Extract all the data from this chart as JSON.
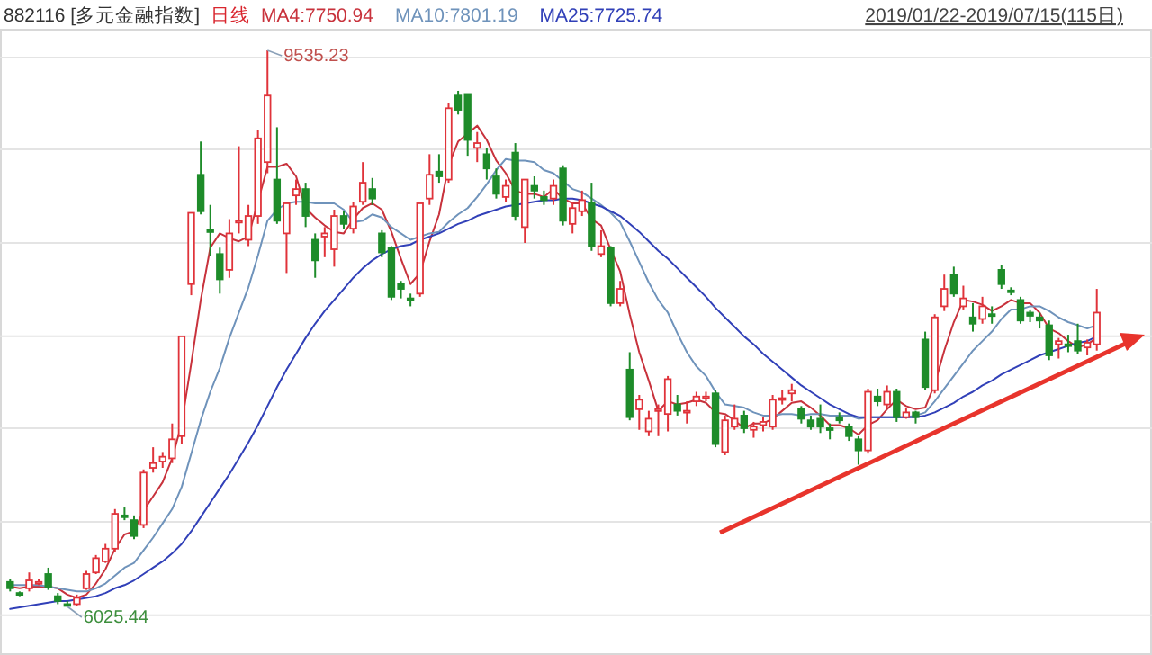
{
  "chart_data": {
    "type": "candlestick",
    "title": "882116 [多元金融指数]",
    "subtitle": "日线",
    "categories": [
      null,
      null,
      null,
      null,
      null,
      null,
      null,
      null,
      null,
      null,
      null,
      null,
      null,
      null,
      null,
      null,
      null,
      null,
      null,
      null,
      null,
      null,
      null,
      null,
      null,
      null,
      null,
      null,
      null,
      null,
      null,
      null,
      null,
      null,
      null,
      null,
      null,
      null,
      null,
      null,
      null,
      null,
      null,
      null,
      null,
      null,
      null,
      null,
      null,
      null,
      null,
      null,
      null,
      null,
      null,
      null,
      null,
      null,
      null,
      null,
      null,
      null,
      null,
      null,
      null,
      null,
      null,
      null,
      null,
      null,
      null,
      null,
      null,
      null,
      null,
      null,
      null,
      null,
      null,
      null,
      null,
      null,
      null,
      null,
      null,
      null,
      null,
      null,
      null,
      null,
      null,
      null,
      null,
      null,
      null,
      null,
      null,
      null,
      null,
      null,
      null,
      null,
      null,
      null,
      null,
      null,
      null,
      null,
      null,
      null,
      null,
      null,
      null,
      null,
      null
    ],
    "ohlc": [
      [
        6180,
        6200,
        6120,
        6140
      ],
      [
        6110,
        6120,
        6090,
        6100
      ],
      [
        6140,
        6240,
        6120,
        6190
      ],
      [
        6170,
        6200,
        6160,
        6180
      ],
      [
        6230,
        6270,
        6130,
        6150
      ],
      [
        6090,
        6110,
        6040,
        6060
      ],
      [
        6040,
        6060,
        6025.44,
        6030
      ],
      [
        6040,
        6100,
        6030,
        6080
      ],
      [
        6140,
        6250,
        6130,
        6230
      ],
      [
        6240,
        6350,
        6230,
        6330
      ],
      [
        6310,
        6420,
        6300,
        6390
      ],
      [
        6390,
        6640,
        6370,
        6610
      ],
      [
        6600,
        6650,
        6570,
        6590
      ],
      [
        6570,
        6600,
        6450,
        6470
      ],
      [
        6540,
        6890,
        6520,
        6870
      ],
      [
        6900,
        7030,
        6870,
        6930
      ],
      [
        6940,
        7000,
        6900,
        6970
      ],
      [
        6960,
        7180,
        6930,
        7080
      ],
      [
        7100,
        7730,
        7050,
        7730
      ],
      [
        8060,
        8510,
        7990,
        8510
      ],
      [
        8750,
        8960,
        8500,
        8520
      ],
      [
        8400,
        8560,
        8240,
        8390
      ],
      [
        8250,
        8290,
        8000,
        8090
      ],
      [
        8150,
        8470,
        8100,
        8380
      ],
      [
        8460,
        8930,
        8380,
        8460
      ],
      [
        8340,
        8560,
        8300,
        8490
      ],
      [
        8490,
        9030,
        8440,
        8980
      ],
      [
        8830,
        9535.23,
        8760,
        9250
      ],
      [
        8720,
        9050,
        8440,
        8460
      ],
      [
        8380,
        8570,
        8130,
        8570
      ],
      [
        8620,
        8720,
        8560,
        8660
      ],
      [
        8660,
        8700,
        8420,
        8490
      ],
      [
        8340,
        8380,
        8100,
        8210
      ],
      [
        8360,
        8420,
        8230,
        8380
      ],
      [
        8280,
        8530,
        8170,
        8490
      ],
      [
        8490,
        8520,
        8410,
        8440
      ],
      [
        8410,
        8580,
        8380,
        8550
      ],
      [
        8580,
        8830,
        8560,
        8700
      ],
      [
        8660,
        8730,
        8560,
        8600
      ],
      [
        8380,
        8400,
        8230,
        8260
      ],
      [
        8290,
        8300,
        7960,
        7980
      ],
      [
        8060,
        8080,
        7970,
        8030
      ],
      [
        7970,
        8000,
        7920,
        7960
      ],
      [
        8000,
        8570,
        7980,
        8570
      ],
      [
        8600,
        8880,
        8560,
        8750
      ],
      [
        8770,
        8880,
        8700,
        8740
      ],
      [
        8720,
        9200,
        8700,
        9170
      ],
      [
        9250,
        9280,
        9130,
        9160
      ],
      [
        9260,
        9260,
        8870,
        8970
      ],
      [
        8920,
        9020,
        8830,
        8950
      ],
      [
        8880,
        8920,
        8720,
        8790
      ],
      [
        8740,
        8790,
        8600,
        8630
      ],
      [
        8610,
        8720,
        8580,
        8680
      ],
      [
        8890,
        8950,
        8460,
        8490
      ],
      [
        8420,
        8720,
        8320,
        8720
      ],
      [
        8680,
        8740,
        8600,
        8650
      ],
      [
        8610,
        8650,
        8560,
        8590
      ],
      [
        8600,
        8720,
        8560,
        8680
      ],
      [
        8790,
        8810,
        8430,
        8460
      ],
      [
        8440,
        8580,
        8380,
        8540
      ],
      [
        8520,
        8650,
        8490,
        8590
      ],
      [
        8570,
        8700,
        8270,
        8300
      ],
      [
        8250,
        8400,
        8230,
        8300
      ],
      [
        8290,
        8300,
        7920,
        7940
      ],
      [
        7940,
        8080,
        7920,
        8030
      ],
      [
        7520,
        7630,
        7200,
        7220
      ],
      [
        7270,
        7360,
        7140,
        7330
      ],
      [
        7130,
        7260,
        7100,
        7210
      ],
      [
        7260,
        7300,
        7100,
        7270
      ],
      [
        7240,
        7480,
        7130,
        7460
      ],
      [
        7300,
        7360,
        7230,
        7260
      ],
      [
        7250,
        7320,
        7180,
        7260
      ],
      [
        7320,
        7380,
        7290,
        7350
      ],
      [
        7340,
        7380,
        7320,
        7350
      ],
      [
        7370,
        7390,
        7030,
        7050
      ],
      [
        7000,
        7230,
        6980,
        7200
      ],
      [
        7160,
        7300,
        7140,
        7210
      ],
      [
        7230,
        7260,
        7120,
        7150
      ],
      [
        7140,
        7190,
        7090,
        7160
      ],
      [
        7170,
        7220,
        7130,
        7190
      ],
      [
        7160,
        7360,
        7140,
        7330
      ],
      [
        7330,
        7390,
        7300,
        7340
      ],
      [
        7370,
        7430,
        7320,
        7390
      ],
      [
        7270,
        7290,
        7180,
        7210
      ],
      [
        7200,
        7230,
        7140,
        7160
      ],
      [
        7210,
        7300,
        7120,
        7160
      ],
      [
        7150,
        7180,
        7080,
        7140
      ],
      [
        7220,
        7250,
        7180,
        7200
      ],
      [
        7160,
        7180,
        7070,
        7100
      ],
      [
        7080,
        7100,
        6920,
        7010
      ],
      [
        7010,
        7400,
        6990,
        7380
      ],
      [
        7350,
        7400,
        7290,
        7320
      ],
      [
        7300,
        7420,
        7280,
        7380
      ],
      [
        7380,
        7400,
        7190,
        7220
      ],
      [
        7220,
        7280,
        7210,
        7250
      ],
      [
        7250,
        7260,
        7180,
        7220
      ],
      [
        7710,
        7760,
        7390,
        7410
      ],
      [
        7390,
        7870,
        7370,
        7850
      ],
      [
        7920,
        8120,
        7890,
        8030
      ],
      [
        8120,
        8170,
        7980,
        8000
      ],
      [
        7920,
        8050,
        7900,
        7970
      ],
      [
        7850,
        7940,
        7760,
        7810
      ],
      [
        7840,
        7980,
        7810,
        7920
      ],
      [
        7870,
        7920,
        7810,
        7860
      ],
      [
        8150,
        8180,
        8030,
        8060
      ],
      [
        8020,
        8040,
        7990,
        8010
      ],
      [
        7960,
        7980,
        7810,
        7830
      ],
      [
        7880,
        7900,
        7820,
        7860
      ],
      [
        7850,
        7880,
        7780,
        7830
      ],
      [
        7800,
        7830,
        7580,
        7610
      ],
      [
        7680,
        7720,
        7590,
        7700
      ],
      [
        7680,
        7740,
        7630,
        7670
      ],
      [
        7700,
        7810,
        7620,
        7640
      ],
      [
        7660,
        7710,
        7610,
        7690
      ],
      [
        7680,
        8030,
        7640,
        7880
      ]
    ],
    "series": [
      {
        "name": "MA4:7750.94",
        "type": "line",
        "color": "#c8323c",
        "values": [
          6150,
          6140,
          6150,
          6150,
          6150,
          6140,
          6100,
          6080,
          6100,
          6170,
          6260,
          6390,
          6480,
          6500,
          6630,
          6720,
          6810,
          6960,
          7180,
          7560,
          7960,
          8290,
          8380,
          8350,
          8330,
          8360,
          8580,
          8800,
          8800,
          8820,
          8740,
          8540,
          8480,
          8430,
          8390,
          8380,
          8470,
          8540,
          8570,
          8530,
          8390,
          8220,
          8060,
          8130,
          8330,
          8500,
          8810,
          8960,
          9010,
          9060,
          8970,
          8840,
          8760,
          8650,
          8630,
          8630,
          8610,
          8660,
          8600,
          8570,
          8570,
          8470,
          8430,
          8280,
          8140,
          7870,
          7630,
          7450,
          7260,
          7320,
          7300,
          7310,
          7330,
          7310,
          7250,
          7240,
          7200,
          7150,
          7180,
          7180,
          7210,
          7260,
          7310,
          7320,
          7280,
          7230,
          7170,
          7170,
          7150,
          7110,
          7170,
          7200,
          7270,
          7330,
          7290,
          7270,
          7280,
          7430,
          7640,
          7820,
          7960,
          7950,
          7930,
          7890,
          7920,
          7960,
          7940,
          7940,
          7880,
          7780,
          7750,
          7700,
          7660,
          7680,
          7720
        ]
      },
      {
        "name": "MA10:7801.19",
        "type": "line",
        "color": "#6f93bb",
        "values": [
          6160,
          6160,
          6160,
          6160,
          6150,
          6140,
          6130,
          6120,
          6120,
          6140,
          6170,
          6220,
          6270,
          6300,
          6380,
          6460,
          6550,
          6640,
          6780,
          6990,
          7200,
          7380,
          7530,
          7720,
          7880,
          8040,
          8240,
          8460,
          8530,
          8570,
          8580,
          8580,
          8570,
          8570,
          8570,
          8530,
          8450,
          8460,
          8500,
          8480,
          8420,
          8380,
          8340,
          8360,
          8380,
          8390,
          8450,
          8500,
          8540,
          8610,
          8690,
          8780,
          8850,
          8840,
          8840,
          8830,
          8780,
          8760,
          8710,
          8660,
          8640,
          8600,
          8560,
          8510,
          8450,
          8330,
          8200,
          8070,
          7960,
          7880,
          7750,
          7630,
          7540,
          7480,
          7380,
          7300,
          7290,
          7280,
          7250,
          7230,
          7230,
          7240,
          7240,
          7230,
          7240,
          7240,
          7230,
          7230,
          7230,
          7210,
          7220,
          7220,
          7220,
          7220,
          7220,
          7230,
          7250,
          7320,
          7400,
          7480,
          7560,
          7640,
          7700,
          7760,
          7840,
          7900,
          7900,
          7920,
          7920,
          7890,
          7850,
          7820,
          7800,
          7780,
          7800
        ]
      },
      {
        "name": "MA25:7725.74",
        "type": "line",
        "color": "#3140b8",
        "values": [
          6010,
          6020,
          6030,
          6040,
          6050,
          6060,
          6060,
          6070,
          6080,
          6090,
          6110,
          6140,
          6160,
          6190,
          6230,
          6270,
          6310,
          6360,
          6420,
          6500,
          6590,
          6680,
          6770,
          6860,
          6960,
          7060,
          7170,
          7290,
          7410,
          7520,
          7620,
          7720,
          7810,
          7890,
          7960,
          8030,
          8100,
          8160,
          8210,
          8250,
          8280,
          8300,
          8310,
          8340,
          8360,
          8380,
          8410,
          8440,
          8460,
          8490,
          8510,
          8530,
          8550,
          8560,
          8570,
          8580,
          8590,
          8590,
          8600,
          8600,
          8590,
          8570,
          8550,
          8520,
          8490,
          8440,
          8390,
          8330,
          8270,
          8220,
          8160,
          8100,
          8040,
          7980,
          7910,
          7850,
          7790,
          7730,
          7680,
          7620,
          7570,
          7520,
          7470,
          7420,
          7380,
          7340,
          7300,
          7270,
          7240,
          7220,
          7220,
          7220,
          7220,
          7220,
          7220,
          7220,
          7230,
          7250,
          7280,
          7310,
          7350,
          7380,
          7420,
          7450,
          7490,
          7520,
          7550,
          7580,
          7610,
          7630,
          7650,
          7670,
          7690,
          7700,
          7730
        ]
      }
    ],
    "yticks": [
      {
        "value": 5970,
        "label": null
      },
      {
        "value": 6560,
        "label": null
      },
      {
        "value": 7150,
        "label": null
      },
      {
        "value": 7730,
        "label": null
      },
      {
        "value": 8320,
        "label": null
      },
      {
        "value": 8910,
        "label": null
      },
      {
        "value": 9490,
        "label": null
      }
    ],
    "grid": "y",
    "legend": "top left",
    "marker": "none",
    "line_style": "solid",
    "annotations": [
      "2019/01/22-2019/07/15(115日)",
      "9535.23",
      "6025.44"
    ]
  }
}
